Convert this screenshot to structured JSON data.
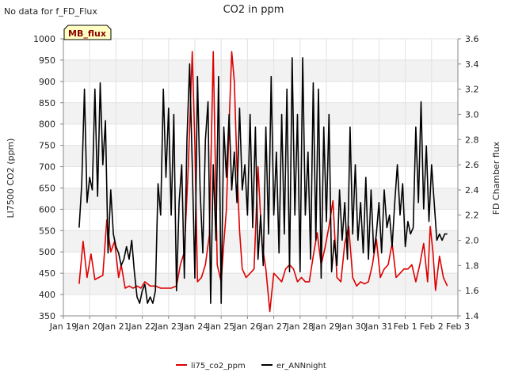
{
  "no_data_note": "No data for f_FD_Flux",
  "badge_label": "MB_flux",
  "chart_data": {
    "type": "line",
    "title": "CO2 in ppm",
    "ylabel_left": "LI7500 CO2 (ppm)",
    "ylabel_right": "FD Chamber flux",
    "xlabel": "",
    "ylim_left": [
      350,
      1000
    ],
    "ylim_right": [
      1.4,
      3.6
    ],
    "xlim": [
      0,
      15
    ],
    "yticks_left": [
      350,
      400,
      450,
      500,
      550,
      600,
      650,
      700,
      750,
      800,
      850,
      900,
      950,
      1000
    ],
    "yticks_right": [
      1.4,
      1.6,
      1.8,
      2.0,
      2.2,
      2.4,
      2.6,
      2.8,
      3.0,
      3.2,
      3.4,
      3.6
    ],
    "xticks": [
      {
        "x": 0,
        "label": "Jan 19"
      },
      {
        "x": 1,
        "label": "Jan 20"
      },
      {
        "x": 2,
        "label": "Jan 21"
      },
      {
        "x": 3,
        "label": "Jan 22"
      },
      {
        "x": 4,
        "label": "Jan 23"
      },
      {
        "x": 5,
        "label": "Jan 24"
      },
      {
        "x": 6,
        "label": "Jan 25"
      },
      {
        "x": 7,
        "label": "Jan 26"
      },
      {
        "x": 8,
        "label": "Jan 27"
      },
      {
        "x": 9,
        "label": "Jan 28"
      },
      {
        "x": 10,
        "label": "Jan 29"
      },
      {
        "x": 11,
        "label": "Jan 30"
      },
      {
        "x": 12,
        "label": "Jan 31"
      },
      {
        "x": 13,
        "label": "Feb 1"
      },
      {
        "x": 14,
        "label": "Feb 2"
      },
      {
        "x": 15,
        "label": "Feb 3"
      }
    ],
    "grid": true,
    "legend_position": "bottom-center",
    "series": [
      {
        "name": "li75_co2_ppm",
        "color": "#dd0000",
        "axis": "left",
        "x": [
          0.6,
          0.75,
          0.9,
          1.05,
          1.2,
          1.35,
          1.5,
          1.65,
          1.8,
          1.95,
          2.1,
          2.2,
          2.35,
          2.5,
          2.65,
          2.8,
          2.95,
          3.1,
          3.3,
          3.5,
          3.7,
          3.9,
          4.1,
          4.3,
          4.45,
          4.6,
          4.75,
          4.9,
          5.0,
          5.1,
          5.25,
          5.4,
          5.55,
          5.7,
          5.85,
          6.0,
          6.1,
          6.2,
          6.3,
          6.4,
          6.5,
          6.6,
          6.7,
          6.8,
          6.95,
          7.1,
          7.25,
          7.4,
          7.55,
          7.7,
          7.85,
          8.0,
          8.15,
          8.3,
          8.45,
          8.6,
          8.75,
          8.9,
          9.05,
          9.2,
          9.35,
          9.5,
          9.65,
          9.8,
          9.95,
          10.1,
          10.25,
          10.4,
          10.55,
          10.7,
          10.85,
          11.0,
          11.15,
          11.3,
          11.45,
          11.6,
          11.75,
          11.9,
          12.05,
          12.2,
          12.35,
          12.5,
          12.65,
          12.8,
          12.95,
          13.1,
          13.25,
          13.4,
          13.55,
          13.7,
          13.85,
          13.95,
          14.05,
          14.15,
          14.3,
          14.45,
          14.6
        ],
        "values": [
          425,
          525,
          440,
          495,
          435,
          440,
          445,
          575,
          500,
          525,
          440,
          470,
          415,
          420,
          415,
          420,
          415,
          430,
          420,
          420,
          415,
          415,
          415,
          420,
          470,
          500,
          700,
          970,
          750,
          430,
          440,
          470,
          540,
          970,
          470,
          430,
          520,
          600,
          800,
          970,
          900,
          700,
          550,
          460,
          440,
          450,
          460,
          700,
          520,
          460,
          360,
          450,
          440,
          430,
          460,
          470,
          460,
          430,
          440,
          430,
          430,
          490,
          545,
          470,
          510,
          560,
          620,
          440,
          430,
          520,
          560,
          440,
          420,
          430,
          425,
          430,
          470,
          530,
          440,
          460,
          470,
          520,
          440,
          450,
          460,
          460,
          470,
          430,
          470,
          520,
          430,
          560,
          500,
          410,
          490,
          440,
          420
        ]
      },
      {
        "name": "er_ANNnight",
        "color": "#000000",
        "axis": "right",
        "x": [
          0.6,
          0.7,
          0.8,
          0.9,
          1.0,
          1.1,
          1.2,
          1.3,
          1.4,
          1.5,
          1.6,
          1.7,
          1.8,
          1.9,
          2.0,
          2.1,
          2.2,
          2.3,
          2.4,
          2.5,
          2.6,
          2.7,
          2.8,
          2.9,
          3.0,
          3.1,
          3.2,
          3.3,
          3.4,
          3.5,
          3.6,
          3.7,
          3.8,
          3.9,
          4.0,
          4.1,
          4.2,
          4.3,
          4.4,
          4.5,
          4.6,
          4.7,
          4.8,
          4.9,
          5.0,
          5.1,
          5.2,
          5.3,
          5.4,
          5.5,
          5.6,
          5.7,
          5.8,
          5.9,
          6.0,
          6.1,
          6.2,
          6.3,
          6.4,
          6.5,
          6.6,
          6.7,
          6.8,
          6.9,
          7.0,
          7.1,
          7.2,
          7.3,
          7.4,
          7.5,
          7.6,
          7.7,
          7.8,
          7.9,
          8.0,
          8.1,
          8.2,
          8.3,
          8.4,
          8.5,
          8.6,
          8.7,
          8.8,
          8.9,
          9.0,
          9.1,
          9.2,
          9.3,
          9.4,
          9.5,
          9.6,
          9.7,
          9.8,
          9.9,
          10.0,
          10.1,
          10.2,
          10.3,
          10.4,
          10.5,
          10.6,
          10.7,
          10.8,
          10.9,
          11.0,
          11.1,
          11.2,
          11.3,
          11.4,
          11.5,
          11.6,
          11.7,
          11.8,
          11.9,
          12.0,
          12.1,
          12.2,
          12.3,
          12.4,
          12.5,
          12.6,
          12.7,
          12.8,
          12.9,
          13.0,
          13.1,
          13.2,
          13.3,
          13.4,
          13.5,
          13.6,
          13.7,
          13.8,
          13.9,
          14.0,
          14.1,
          14.2,
          14.3,
          14.4,
          14.5,
          14.6
        ],
        "values": [
          2.1,
          2.45,
          3.2,
          2.3,
          2.5,
          2.4,
          3.2,
          2.35,
          3.25,
          2.6,
          2.95,
          1.9,
          2.4,
          2.05,
          1.95,
          1.9,
          1.8,
          1.85,
          1.95,
          1.85,
          2.0,
          1.75,
          1.55,
          1.5,
          1.6,
          1.65,
          1.5,
          1.55,
          1.5,
          1.6,
          2.45,
          2.2,
          3.2,
          2.5,
          3.05,
          2.2,
          3.0,
          1.6,
          2.3,
          2.6,
          1.7,
          2.8,
          3.4,
          2.6,
          1.7,
          3.3,
          2.4,
          1.9,
          2.8,
          3.1,
          1.5,
          2.6,
          2.0,
          3.3,
          1.5,
          2.9,
          2.5,
          3.0,
          2.4,
          2.7,
          2.3,
          3.05,
          2.4,
          2.6,
          2.2,
          3.0,
          2.1,
          2.9,
          1.85,
          2.2,
          1.8,
          2.9,
          2.05,
          3.3,
          2.2,
          2.7,
          1.9,
          3.0,
          2.05,
          3.2,
          1.75,
          3.45,
          2.2,
          3.0,
          1.75,
          3.45,
          2.2,
          2.7,
          1.85,
          3.25,
          2.0,
          3.2,
          1.7,
          2.9,
          2.15,
          3.0,
          1.75,
          2.0,
          1.8,
          2.4,
          2.0,
          2.3,
          1.85,
          2.9,
          2.05,
          2.6,
          2.0,
          2.3,
          1.9,
          2.5,
          1.85,
          2.4,
          1.9,
          2.05,
          2.3,
          1.9,
          2.4,
          2.1,
          2.2,
          1.95,
          2.3,
          2.6,
          2.2,
          2.45,
          1.95,
          2.15,
          2.05,
          2.1,
          2.9,
          2.3,
          3.1,
          2.25,
          2.75,
          2.15,
          2.6,
          2.3,
          2.0,
          2.05,
          2.0,
          2.05,
          2.05
        ]
      }
    ]
  }
}
